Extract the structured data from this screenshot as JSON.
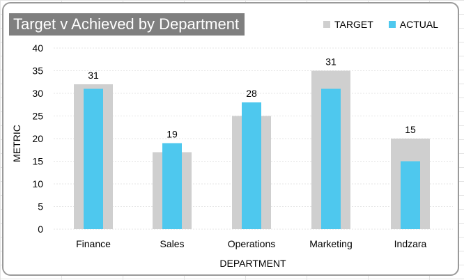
{
  "chart_data": {
    "type": "bar",
    "title": "Target v Achieved by Department",
    "xlabel": "DEPARTMENT",
    "ylabel": "METRIC",
    "ylim": [
      0,
      40
    ],
    "yticks": [
      0,
      5,
      10,
      15,
      20,
      25,
      30,
      35,
      40
    ],
    "categories": [
      "Finance",
      "Sales",
      "Operations",
      "Marketing",
      "Indzara"
    ],
    "series": [
      {
        "name": "TARGET",
        "values": [
          32,
          17,
          25,
          35,
          20
        ],
        "color": "#cfcfcf"
      },
      {
        "name": "ACTUAL",
        "values": [
          31,
          19,
          28,
          31,
          15
        ],
        "color": "#4ec8ee"
      }
    ],
    "data_labels": [
      "31",
      "19",
      "28",
      "31",
      "15"
    ],
    "legend_position": "top-right",
    "grid": true
  }
}
